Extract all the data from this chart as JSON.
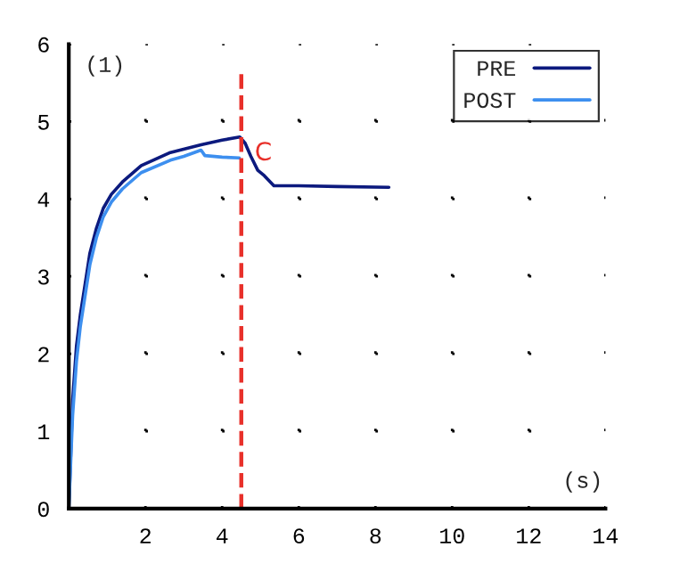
{
  "chart_data": {
    "type": "line",
    "xlabel": "(s)",
    "annotations": [
      "(1)"
    ],
    "xlim": [
      0,
      14
    ],
    "xticks": [
      {
        "value": 0,
        "label": null
      },
      2,
      4,
      6,
      8,
      10,
      12,
      14
    ],
    "ylim": [
      0,
      6
    ],
    "yticks": [
      0,
      1,
      2,
      3,
      4,
      5,
      6
    ],
    "grid": true,
    "legend": "top right",
    "line_style": "solid",
    "ref_lines": [
      {
        "axis": "x",
        "value": 4.5,
        "label": "C",
        "color": "#e8302a",
        "line_style": "dashed"
      }
    ],
    "series": [
      {
        "name": "PRE",
        "color": "#0c1a7e",
        "x": [
          0,
          0.1,
          0.2,
          0.3,
          0.41,
          0.55,
          0.72,
          0.9,
          1.11,
          1.4,
          1.89,
          2.65,
          3.45,
          4.0,
          4.46,
          4.6,
          4.75,
          4.93,
          5.1,
          5.35,
          6.0,
          7.0,
          8.35
        ],
        "values": [
          0,
          1.4,
          2.1,
          2.5,
          2.85,
          3.3,
          3.62,
          3.88,
          4.06,
          4.22,
          4.43,
          4.6,
          4.7,
          4.76,
          4.8,
          4.72,
          4.55,
          4.37,
          4.3,
          4.17,
          4.17,
          4.16,
          4.15
        ]
      },
      {
        "name": "POST",
        "color": "#3d8fef",
        "x": [
          0,
          0.1,
          0.2,
          0.3,
          0.41,
          0.55,
          0.72,
          0.9,
          1.11,
          1.4,
          1.89,
          2.65,
          3.0,
          3.45,
          3.55,
          4.0,
          4.45
        ],
        "values": [
          0,
          1.2,
          1.9,
          2.35,
          2.7,
          3.15,
          3.5,
          3.77,
          3.96,
          4.13,
          4.34,
          4.5,
          4.55,
          4.63,
          4.56,
          4.54,
          4.53
        ]
      }
    ]
  }
}
